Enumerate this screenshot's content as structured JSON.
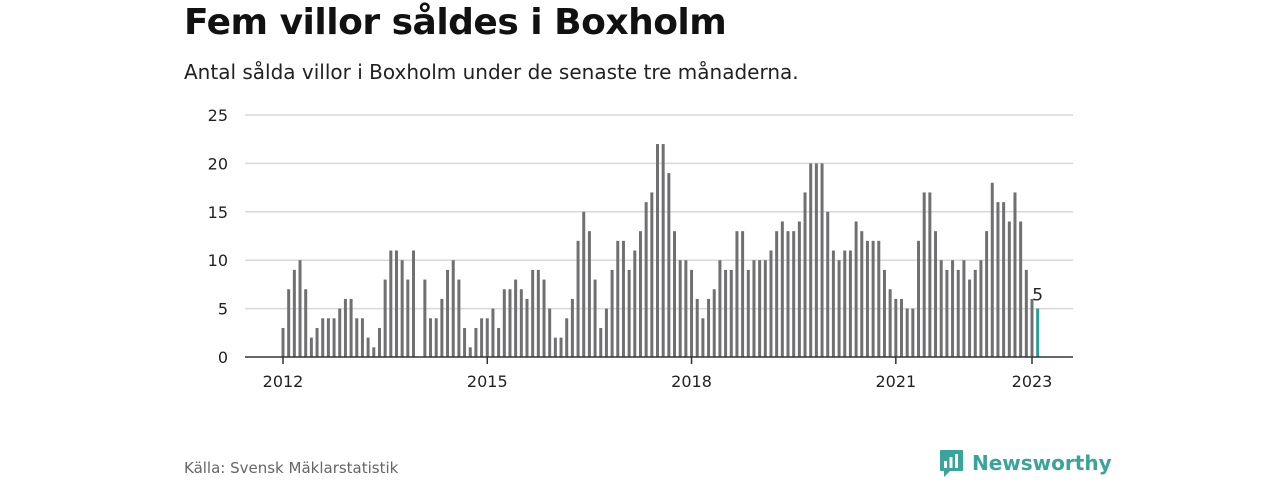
{
  "header": {
    "title": "Fem villor såldes i Boxholm",
    "subtitle": "Antal sålda villor i Boxholm under de senaste tre månaderna."
  },
  "footer": {
    "source": "Källa: Svensk Mäklarstatistik",
    "brand": "Newsworthy",
    "brand_icon": "newsworthy-logo-icon"
  },
  "colors": {
    "bar": "#707072",
    "highlight": "#2a9d95",
    "grid": "#d8d8d8",
    "axis": "#333333",
    "brand": "#3aa39a"
  },
  "chart_data": {
    "type": "bar",
    "title": "Fem villor såldes i Boxholm",
    "subtitle": "Antal sålda villor i Boxholm under de senaste tre månaderna.",
    "xlabel": "",
    "ylabel": "",
    "x_unit": "month",
    "x_start": "2012-01",
    "x_end": "2023-01",
    "x_ticks": [
      {
        "label": "2012",
        "date": "2012-01"
      },
      {
        "label": "2015",
        "date": "2015-01"
      },
      {
        "label": "2018",
        "date": "2018-01"
      },
      {
        "label": "2021",
        "date": "2021-01"
      },
      {
        "label": "2023",
        "date": "2023-01"
      }
    ],
    "ylim": [
      0,
      25
    ],
    "y_ticks": [
      0,
      5,
      10,
      15,
      20,
      25
    ],
    "grid": true,
    "highlight_last": true,
    "last_label": "5",
    "values": [
      3,
      7,
      9,
      10,
      7,
      2,
      3,
      4,
      4,
      4,
      5,
      6,
      6,
      4,
      4,
      2,
      1,
      3,
      8,
      11,
      11,
      10,
      8,
      11,
      0,
      8,
      4,
      4,
      6,
      9,
      10,
      8,
      3,
      1,
      3,
      4,
      4,
      5,
      3,
      7,
      7,
      8,
      7,
      6,
      9,
      9,
      8,
      5,
      2,
      2,
      4,
      6,
      12,
      15,
      13,
      8,
      3,
      5,
      9,
      12,
      12,
      9,
      11,
      13,
      16,
      17,
      22,
      22,
      19,
      13,
      10,
      10,
      9,
      6,
      4,
      6,
      7,
      10,
      9,
      9,
      13,
      13,
      9,
      10,
      10,
      10,
      11,
      13,
      14,
      13,
      13,
      14,
      17,
      20,
      20,
      20,
      15,
      11,
      10,
      11,
      11,
      14,
      13,
      12,
      12,
      12,
      9,
      7,
      6,
      6,
      5,
      5,
      12,
      17,
      17,
      13,
      10,
      9,
      10,
      9,
      10,
      8,
      9,
      10,
      13,
      18,
      16,
      16,
      14,
      17,
      14,
      9,
      6,
      5
    ]
  }
}
